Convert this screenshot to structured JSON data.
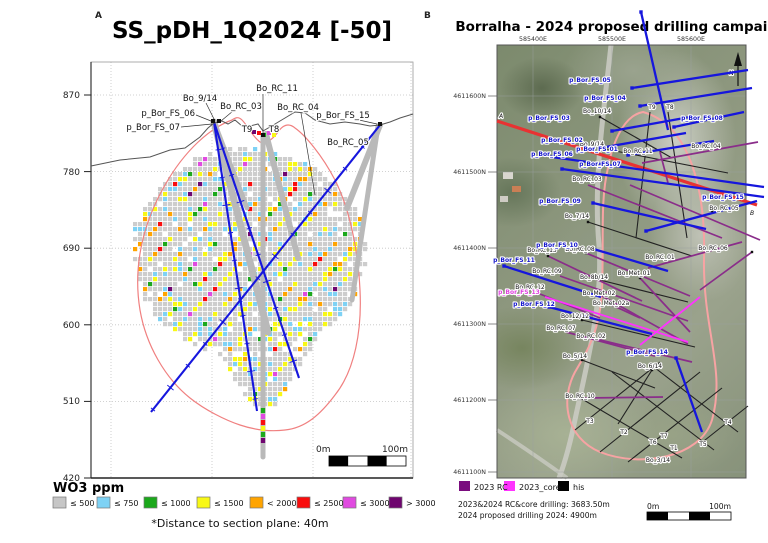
{
  "panelA": {
    "corner_left": "A",
    "corner_right": "B",
    "title": "SS_pDH_1Q2024 [-50]",
    "elevation_ticks": [
      "870",
      "780",
      "690",
      "600",
      "510",
      "420"
    ],
    "drill_labels": [
      "p_Bor_FS_06",
      "p_Bor_FS_07",
      "Bo_9/14",
      "Bo_RC_03",
      "Bo_RC_11",
      "Bo_RC_04",
      "p_Bor_FS_15",
      "Bo_RC_05",
      "T9",
      "T8"
    ],
    "scalebar": {
      "left": "0m",
      "right": "100m"
    },
    "legend": {
      "title": "WO3 ppm",
      "items": [
        {
          "label": "≤ 500",
          "color": "#c6c6c6"
        },
        {
          "label": "≤ 750",
          "color": "#7ed2f5"
        },
        {
          "label": "≤ 1000",
          "color": "#1ba81b"
        },
        {
          "label": "≤ 1500",
          "color": "#f8f816"
        },
        {
          "label": "< 2000",
          "color": "#ffa400"
        },
        {
          "label": "≤ 2500",
          "color": "#f90d0d"
        },
        {
          "label": "≤ 3000",
          "color": "#e04ae0"
        },
        {
          "label": "> 3000",
          "color": "#6f056f"
        }
      ]
    },
    "footnote": "*Distance to section plane: 40m"
  },
  "panelB": {
    "title": "Borralha - 2024 proposed drilling campaign",
    "easting_ticks": [
      "585400E",
      "585500E",
      "585600E"
    ],
    "northing_ticks": [
      "4611600N",
      "4611500N",
      "4611400N",
      "4611300N",
      "4611200N",
      "4611100N"
    ],
    "north_arrow": "N",
    "section_start": "A",
    "section_end": "B",
    "proposed": [
      "p_Bor_FS_01",
      "p_Bor_FS_02",
      "p_Bor_FS_03",
      "p_Bor_FS_04",
      "p_Bor_FS_05",
      "p_Bor_FS_06",
      "p_Bor_FS_07",
      "p_Bor_FS_08",
      "p_Bor_FS_09",
      "p_Bor_FS_10",
      "p_Bor_FS_11",
      "p_Bor_FS_12",
      "p_Bor_FS_13",
      "p_Bor_FS_14",
      "p_Bor_FS_15"
    ],
    "historic": [
      "Bo_10/14",
      "T9",
      "T8",
      "Bo_9/14",
      "Bo_RC_11",
      "Bo_RC_04",
      "Bo_RC_03",
      "Bo_7/14",
      "Bo_RC_13",
      "Bo_RC_08",
      "Bo_RC_06",
      "Bo_RC_01",
      "Bo_RC_09",
      "Bo_8b/14",
      "Bo_Met_01",
      "Bo_RC_12",
      "Bo_Met_02",
      "Bo_Met_02a",
      "Bo_12/12",
      "Bo_RC_07",
      "Bo_RC_02",
      "Bo_5/14",
      "Bo_6/14",
      "Bo_RC_10",
      "T3",
      "T2",
      "T6",
      "T7",
      "T1",
      "T5",
      "T4",
      "Bo_3/14",
      "Bo_RC_05"
    ],
    "legend": [
      {
        "label": "2023 RC",
        "color": "#7a0c7e"
      },
      {
        "label": "2023_core",
        "color": "#ff33ff"
      },
      {
        "label": "his",
        "color": "#000000"
      }
    ],
    "stats": [
      "2023&2024 RC&core drilling: 3683.50m",
      "2024 proposed drilling 2024: 4900m"
    ],
    "scalebar": {
      "left": "0m",
      "right": "100m"
    }
  },
  "colors": {
    "proposed_blue": "#1616dd",
    "historic_purple": "#8a2d8a",
    "core_magenta": "#ff33ff",
    "section_red": "#e83232",
    "envelope_pink": "#f29b9b"
  }
}
